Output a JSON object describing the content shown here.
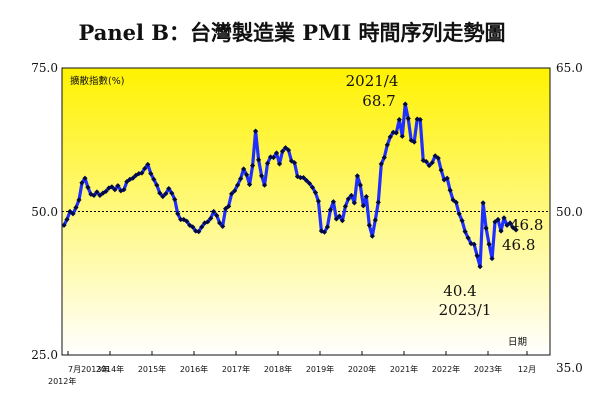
{
  "chart_data": {
    "type": "line",
    "title": "Panel B：台灣製造業 PMI 時間序列走勢圖",
    "ylabel": "擴散指數(%)",
    "xlabel": "日期",
    "ylim": [
      25,
      75
    ],
    "y_right_ticks": [
      "65.0",
      "50.0",
      "35.0"
    ],
    "y_left_ticks": [
      "75.0",
      "50.0",
      "25.0"
    ],
    "reference_line": 50,
    "x_ticks": [
      "7月2013年",
      "2014年",
      "2015年",
      "2016年",
      "2017年",
      "2018年",
      "2019年",
      "2020年",
      "2021年",
      "2022年",
      "2023年",
      "12月"
    ],
    "x_sub_label": "2012年",
    "series": [
      {
        "values": [
          47.6,
          48.6,
          50.0,
          49.6,
          50.7,
          52.0,
          55.0,
          55.8,
          54.2,
          53.0,
          52.8,
          53.4,
          52.8,
          53.2,
          53.5,
          54.1,
          54.3,
          53.8,
          54.5,
          53.6,
          53.8,
          55.2,
          55.6,
          55.8,
          56.3,
          56.6,
          56.7,
          57.5,
          58.2,
          56.6,
          55.6,
          54.6,
          53.2,
          52.6,
          53.1,
          54.0,
          53.2,
          52.1,
          49.6,
          48.6,
          48.6,
          48.3,
          47.6,
          47.3,
          46.6,
          46.5,
          47.3,
          48.0,
          48.2,
          48.8,
          50.0,
          49.3,
          48.0,
          47.4,
          50.5,
          50.9,
          53.1,
          53.6,
          54.6,
          55.7,
          57.4,
          56.4,
          54.7,
          58.0,
          64.0,
          59.0,
          56.2,
          54.6,
          58.4,
          59.5,
          59.4,
          60.2,
          58.3,
          60.5,
          61.1,
          60.7,
          58.8,
          58.5,
          56.1,
          55.9,
          55.9,
          55.4,
          54.9,
          54.2,
          53.3,
          51.8,
          46.6,
          46.4,
          47.3,
          50.3,
          51.7,
          48.7,
          49.2,
          48.4,
          50.9,
          52.2,
          52.8,
          51.5,
          56.2,
          54.6,
          51.0,
          52.6,
          47.6,
          45.7,
          48.5,
          51.6,
          58.3,
          59.4,
          61.6,
          63.0,
          63.8,
          63.7,
          66.0,
          63.1,
          68.7,
          66.2,
          62.4,
          62.1,
          66.1,
          66.0,
          58.9,
          58.7,
          58.0,
          58.5,
          59.7,
          59.3,
          57.2,
          55.5,
          55.8,
          53.7,
          52.0,
          51.6,
          49.6,
          48.4,
          46.5,
          45.4,
          44.4,
          44.3,
          42.3,
          40.4,
          51.5,
          47.1,
          44.3,
          41.8,
          48.2,
          48.6,
          46.6,
          48.9,
          47.6,
          48.0,
          47.2,
          46.8
        ]
      }
    ],
    "annotations": [
      {
        "date": "2021/4",
        "value_label": "68.7"
      },
      {
        "date": "2023/1",
        "value_label": "40.4"
      },
      {
        "value_label": "46.8"
      },
      {
        "value_label": "46.8"
      }
    ],
    "plot_background": [
      "#fff200",
      "#ffffff"
    ],
    "line_color": "#1f2fff",
    "marker_color": "#000a44"
  }
}
